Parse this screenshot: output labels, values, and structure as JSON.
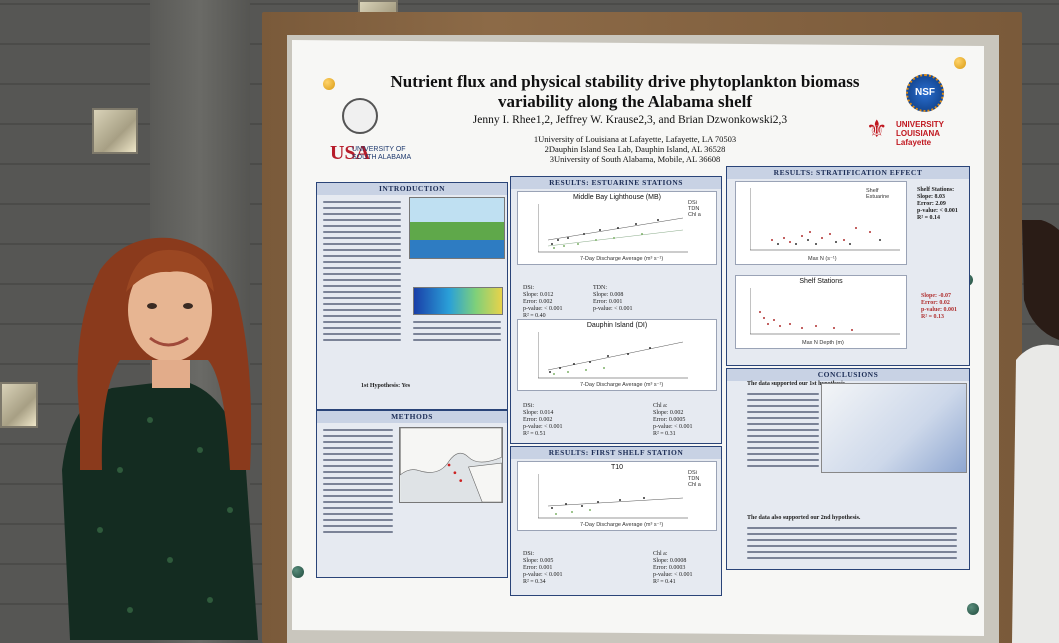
{
  "poster": {
    "title": "Nutrient flux and physical stability drive phytoplankton biomass variability along the Alabama shelf",
    "authors": "Jenny I. Rhee1,2, Jeffrey W. Krause2,3, and Brian Dzwonkowski2,3",
    "affiliations": [
      "1University of Louisiana at Lafayette, Lafayette, LA 70503",
      "2Dauphin Island Sea Lab, Dauphin Island, AL 36528",
      "3University of South Alabama, Mobile, AL 36608"
    ],
    "logos": {
      "usa_mark": "USA",
      "usa_text_1": "UNIVERSITY OF",
      "usa_text_2": "SOUTH ALABAMA",
      "nsf": "NSF",
      "ull_text_1": "UNIVERSITY",
      "ull_text_2": "LOUISIANA",
      "ull_text_3": "Lafayette"
    },
    "sections": {
      "introduction": "INTRODUCTION",
      "methods": "METHODS",
      "estuarine": "RESULTS: ESTUARINE STATIONS",
      "stratification": "RESULTS: STRATIFICATION EFFECT",
      "shelf": "RESULTS: FIRST SHELF STATION",
      "conclusions": "CONCLUSIONS"
    },
    "plots": {
      "mb_title": "Middle Bay Lighthouse (MB)",
      "di_title": "Dauphin Island (DI)",
      "t10_title": "T10",
      "shelf_title": "Shelf Stations",
      "x_label": "7-Day Discharge Average (m³ s⁻¹)",
      "legend_dsi": "DSi",
      "legend_tdn": "TDN",
      "legend_chl": "Chl a",
      "strat_legend_shelf": "Shelf",
      "strat_legend_estuarine": "Estuarine",
      "strat_x_label": "Max N (s⁻¹)",
      "shelf_x_label": "Max N Depth (m)"
    },
    "stats": {
      "shelf_stations_head": "Shelf Stations:",
      "shelf_slope": "Slope: 8.03",
      "shelf_error": "Error: 2.09",
      "shelf_p": "p-value: < 0.001",
      "shelf_r2": "R² = 0.14",
      "red_slope": "Slope: -0.07",
      "red_error": "Error: 0.02",
      "red_p": "p-value: 0.001",
      "red_r2": "R² = 0.13",
      "mb_dsi_head": "DSi:",
      "mb_dsi_slope": "Slope: 0.012",
      "mb_dsi_error": "Error: 0.002",
      "mb_dsi_p": "p-value: < 0.001",
      "mb_dsi_r2": "R² = 0.40",
      "mb_tdn_head": "TDN:",
      "mb_tdn_slope": "Slope: 0.008",
      "mb_tdn_error": "Error: 0.001",
      "mb_tdn_p": "p-value: < 0.001",
      "di_dsi_head": "DSi:",
      "di_dsi_slope": "Slope: 0.014",
      "di_dsi_error": "Error: 0.002",
      "di_dsi_p": "p-value: < 0.001",
      "di_dsi_r2": "R² = 0.51",
      "di_chl_head": "Chl a:",
      "di_chl_slope": "Slope: 0.002",
      "di_chl_error": "Error: 0.0005",
      "di_chl_p": "p-value: < 0.001",
      "di_chl_r2": "R² = 0.31",
      "t10_dsi_head": "DSi:",
      "t10_dsi_slope": "Slope: 0.005",
      "t10_dsi_error": "Error: 0.001",
      "t10_dsi_p": "p-value: < 0.001",
      "t10_dsi_r2": "R² = 0.34",
      "t10_chl_head": "Chl a:",
      "t10_chl_slope": "Slope: 0.0008",
      "t10_chl_error": "Error: 0.0003",
      "t10_chl_p": "p-value: < 0.001",
      "t10_chl_r2": "R² = 0.41"
    },
    "text": {
      "hypothesis_1": "1st Hypothesis: Yes",
      "conclusion_lead": "The data supported our 1st hypothesis.",
      "conclusion_2": "The data also supported our 2nd hypothesis."
    }
  },
  "colors": {
    "panel_border": "#2a4478",
    "panel_fill": "#e6eaf1",
    "accent_red": "#b03030",
    "frame_wood": "#7a5a3a"
  }
}
